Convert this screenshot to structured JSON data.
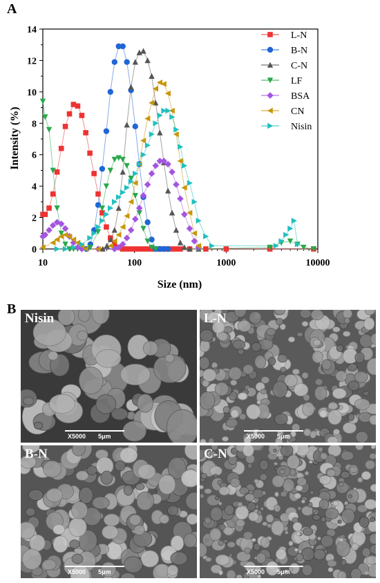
{
  "panels": {
    "a": "A",
    "b": "B"
  },
  "chart_data": {
    "type": "scatter",
    "xscale": "log",
    "xlabel": "Size (nm)",
    "ylabel": "Intensity (%)",
    "xlim": [
      10,
      10000
    ],
    "ylim": [
      0,
      14
    ],
    "xticks": [
      "10",
      "100",
      "1000",
      "10000"
    ],
    "yticks": [
      "0",
      "2",
      "4",
      "6",
      "8",
      "10",
      "12",
      "14"
    ],
    "grid": false,
    "legend": "top-right",
    "series": [
      {
        "name": "L-N",
        "color": "#ee3333",
        "marker": "square",
        "x": [
          10,
          10.6,
          11.7,
          12.9,
          14.3,
          15.9,
          17.6,
          19.5,
          21.6,
          24,
          26.6,
          29.4,
          32.6,
          36.2,
          40.1,
          44.4,
          49.3,
          54.6,
          60.6,
          67.2,
          74.5,
          82.6,
          91.6,
          102,
          113,
          125,
          139,
          154,
          170,
          189,
          209,
          232,
          257,
          285,
          316,
          400,
          600,
          1000,
          3000,
          9000
        ],
        "y": [
          2.2,
          2.2,
          2.6,
          3.5,
          4.9,
          6.4,
          7.8,
          8.6,
          9.2,
          9.1,
          8.5,
          7.4,
          6.1,
          4.8,
          3.5,
          2.3,
          1.4,
          0.7,
          0.3,
          0.1,
          0,
          0,
          0,
          0,
          0,
          0,
          0,
          0,
          0,
          0,
          0,
          0,
          0,
          0,
          0,
          0,
          0,
          0,
          0,
          0
        ]
      },
      {
        "name": "B-N",
        "color": "#1f66d6",
        "marker": "circle",
        "x": [
          30,
          33,
          36.2,
          40.1,
          44.4,
          49.3,
          54.6,
          60.6,
          67.2,
          74.5,
          82.6,
          91.6,
          102,
          113,
          125,
          139,
          154,
          170,
          189,
          209,
          232
        ],
        "y": [
          0,
          0.3,
          1.2,
          2.8,
          5.1,
          7.5,
          10,
          11.9,
          12.9,
          12.9,
          11.9,
          10.1,
          7.8,
          5.4,
          3.3,
          1.7,
          0.6,
          0,
          0,
          0,
          0
        ]
      },
      {
        "name": "C-N",
        "color": "#555555",
        "marker": "triangle-up",
        "x": [
          45,
          50,
          55,
          60.6,
          67.2,
          74.5,
          82.6,
          91.6,
          102,
          113,
          125,
          139,
          154,
          170,
          189,
          209,
          232,
          257,
          285,
          316,
          350,
          400,
          500
        ],
        "y": [
          0,
          0.2,
          0.6,
          1.2,
          2.6,
          4.9,
          7.9,
          10.3,
          11.9,
          12.5,
          12.6,
          12.0,
          11.0,
          9.3,
          7.4,
          5.5,
          3.7,
          2.3,
          1.2,
          0.4,
          0.1,
          0,
          0
        ]
      },
      {
        "name": "LF",
        "color": "#2aa84a",
        "marker": "triangle-down",
        "x": [
          10,
          10.6,
          11.7,
          12.9,
          14.3,
          15.9,
          17.6,
          19.5,
          21.6,
          24,
          26.6,
          33,
          40.1,
          44.4,
          49.3,
          54.6,
          60.6,
          67.2,
          74.5,
          82.6,
          91.6,
          102,
          113,
          125,
          139,
          154,
          170,
          500,
          3000,
          4000,
          5000,
          6000,
          7000,
          9000
        ],
        "y": [
          9.4,
          8.4,
          7.6,
          5.0,
          2.6,
          1.0,
          0.3,
          0,
          0,
          0,
          0,
          0.1,
          1.1,
          2.6,
          4.0,
          5.0,
          5.7,
          5.8,
          5.7,
          5.3,
          4.5,
          3.4,
          2.3,
          1.3,
          0.5,
          0.1,
          0,
          0,
          0.1,
          0.4,
          0.5,
          0.3,
          0.1,
          0
        ]
      },
      {
        "name": "BSA",
        "color": "#a455e0",
        "marker": "diamond",
        "x": [
          10,
          10.6,
          11.7,
          12.9,
          14.3,
          15.9,
          17.6,
          19.5,
          21.6,
          24,
          26.6,
          40.1,
          60.6,
          67.2,
          74.5,
          82.6,
          91.6,
          102,
          113,
          125,
          139,
          154,
          170,
          189,
          209,
          232,
          257,
          285,
          316,
          350,
          400,
          450,
          500
        ],
        "y": [
          0.8,
          0.9,
          1.2,
          1.5,
          1.7,
          1.6,
          1.3,
          0.8,
          0.4,
          0.1,
          0,
          0,
          0,
          0.1,
          0.3,
          0.7,
          1.2,
          1.9,
          2.6,
          3.4,
          4.1,
          4.8,
          5.3,
          5.6,
          5.6,
          5.4,
          4.9,
          4.1,
          3.2,
          2.2,
          1.3,
          0.5,
          0.1
        ]
      },
      {
        "name": "CN",
        "color": "#c8960a",
        "marker": "triangle-left",
        "x": [
          10,
          12.9,
          14.3,
          15.9,
          17.6,
          19.5,
          21.6,
          24,
          26.6,
          29.4,
          40.1,
          55,
          60.6,
          67.2,
          74.5,
          82.6,
          91.6,
          102,
          113,
          125,
          139,
          154,
          170,
          189,
          209,
          232,
          257,
          285,
          316,
          350,
          400,
          450,
          500
        ],
        "y": [
          0.1,
          0.4,
          0.6,
          0.8,
          0.9,
          0.8,
          0.6,
          0.4,
          0.2,
          0,
          0,
          0.2,
          0.5,
          0.9,
          1.4,
          2.1,
          3.0,
          4.2,
          5.4,
          6.9,
          8.3,
          9.3,
          10.2,
          10.6,
          10.5,
          9.9,
          8.8,
          7.3,
          5.6,
          3.9,
          2.3,
          1.0,
          0.2
        ]
      },
      {
        "name": "Nisin",
        "color": "#22bfbf",
        "marker": "triangle-right",
        "x": [
          14.3,
          17.6,
          21.6,
          26.6,
          32.6,
          36.2,
          40.1,
          44.4,
          49.3,
          54.6,
          60.6,
          67.2,
          74.5,
          82.6,
          91.6,
          102,
          113,
          125,
          139,
          154,
          170,
          189,
          209,
          232,
          257,
          285,
          316,
          350,
          400,
          450,
          500,
          600,
          700,
          3500,
          4000,
          4500,
          5000,
          5500,
          6000
        ],
        "y": [
          0,
          0,
          0.1,
          0.3,
          0.7,
          1.0,
          1.4,
          1.8,
          2.2,
          2.6,
          3.0,
          3.3,
          3.6,
          3.9,
          4.3,
          4.8,
          5.4,
          6.0,
          6.6,
          7.3,
          8.0,
          8.5,
          8.8,
          8.8,
          8.4,
          7.6,
          6.5,
          5.3,
          4.2,
          3.0,
          1.8,
          0.8,
          0.2,
          0.2,
          0.5,
          0.9,
          1.3,
          1.8,
          0.3
        ]
      }
    ]
  },
  "sem": [
    {
      "label": "Nisin",
      "mag": "X5000",
      "scale": "5μm"
    },
    {
      "label": "L-N",
      "mag": "X5000",
      "scale": "5μm"
    },
    {
      "label": "B-N",
      "mag": "X5000",
      "scale": "5μm"
    },
    {
      "label": "C-N",
      "mag": "X5000",
      "scale": "5μm"
    }
  ]
}
